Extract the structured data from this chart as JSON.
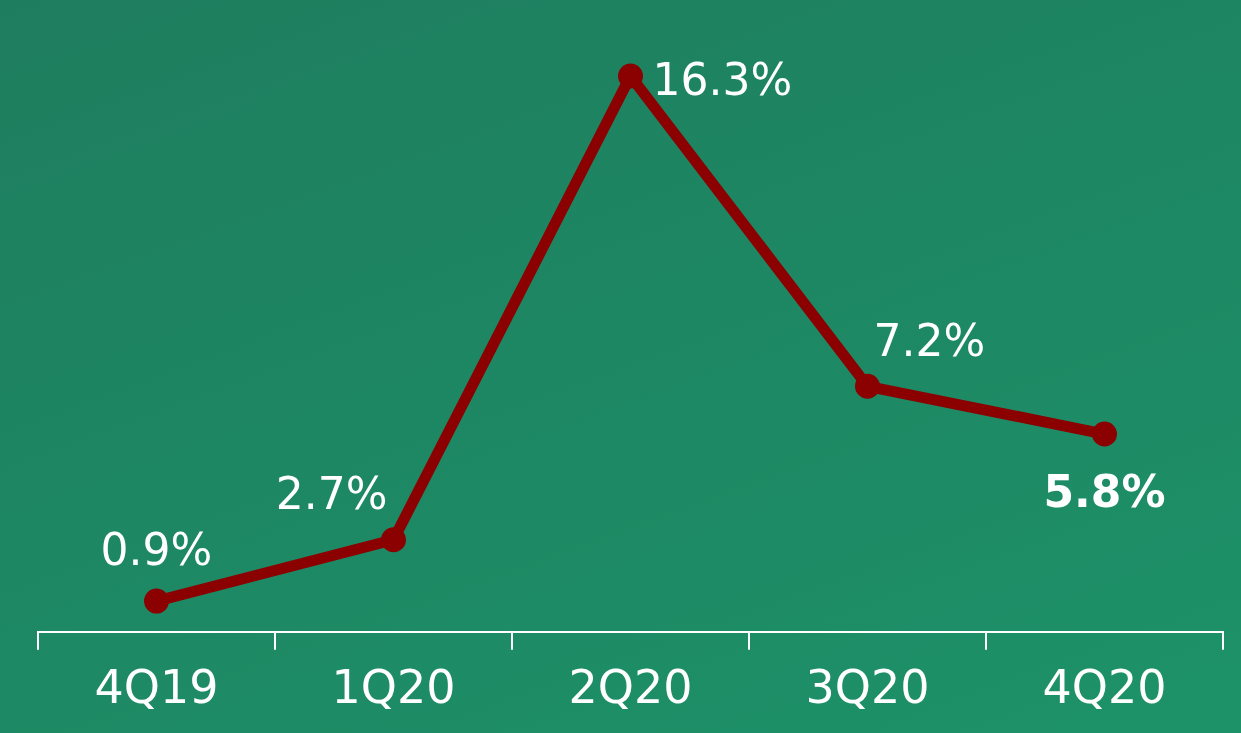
{
  "chart_data": {
    "type": "line",
    "categories": [
      "4Q19",
      "1Q20",
      "2Q20",
      "3Q20",
      "4Q20"
    ],
    "series": [
      {
        "color": "#8b0000",
        "values": [
          0.9,
          2.7,
          16.3,
          7.2,
          5.8
        ],
        "value_labels": [
          "0.9%",
          "2.7%",
          "16.3%",
          "7.2%",
          "5.8%"
        ]
      }
    ],
    "marker": "circle",
    "tick_labels": "x",
    "grid": false,
    "legend": false
  }
}
